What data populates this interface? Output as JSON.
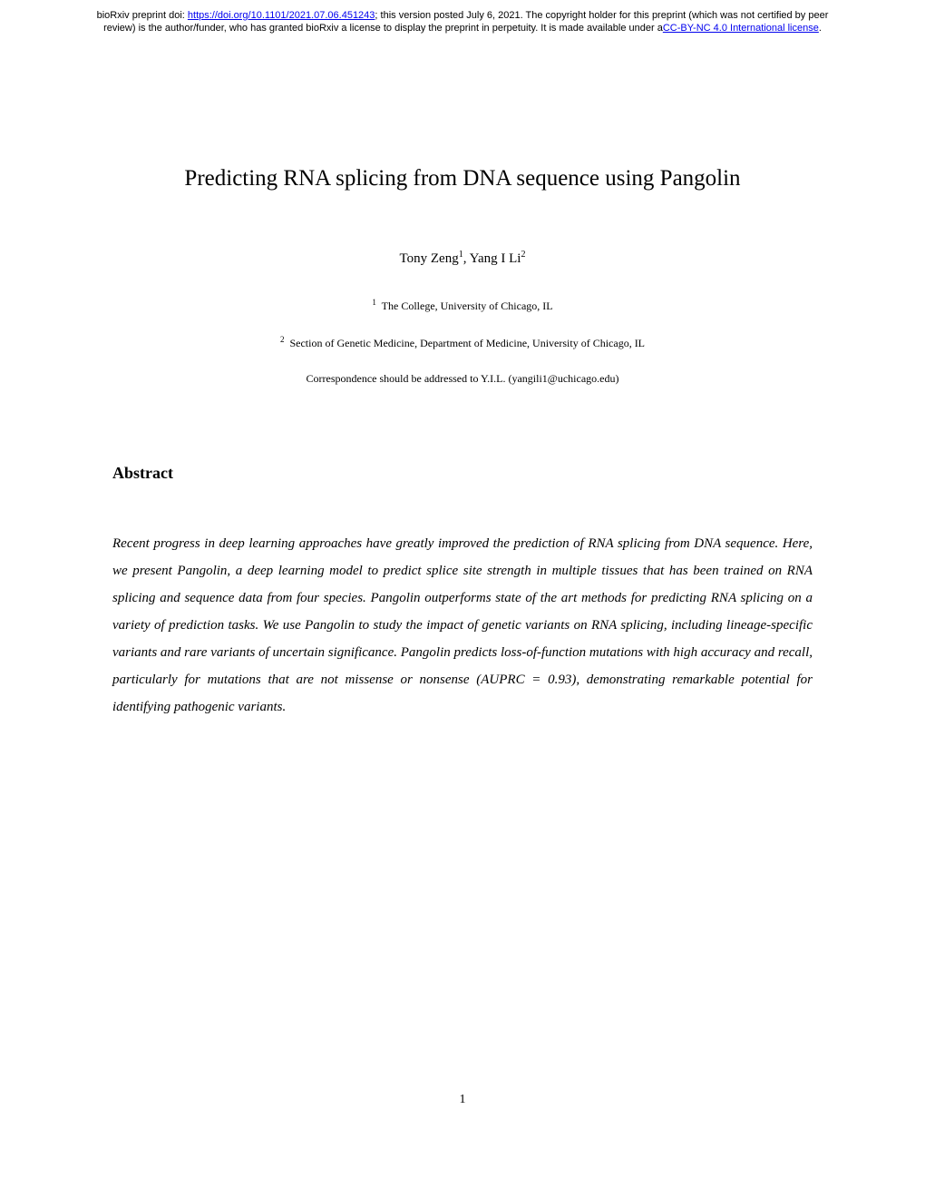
{
  "header": {
    "prefix": "bioRxiv preprint doi: ",
    "doi_url": "https://doi.org/10.1101/2021.07.06.451243",
    "middle": "; this version posted July 6, 2021. The copyright holder for this preprint (which was not certified by peer review) is the author/funder, who has granted bioRxiv a license to display the preprint in perpetuity. It is made available under a",
    "license_text": "CC-BY-NC 4.0 International license",
    "suffix": "."
  },
  "title": "Predicting RNA splicing from DNA sequence using Pangolin",
  "authors": {
    "a1_name": "Tony Zeng",
    "a1_sup": "1",
    "sep": ", ",
    "a2_name": "Yang I Li",
    "a2_sup": "2"
  },
  "affiliations": {
    "aff1_sup": "1",
    "aff1_text": " The College, University of Chicago, IL",
    "aff2_sup": "2",
    "aff2_text": " Section of Genetic Medicine, Department of Medicine, University of Chicago, IL"
  },
  "correspondence": "Correspondence should be addressed to Y.I.L. (yangili1@uchicago.edu)",
  "abstract": {
    "heading": "Abstract",
    "body": "Recent progress in deep learning approaches have greatly improved the prediction of RNA splicing from DNA sequence. Here, we present Pangolin, a deep learning model to predict splice site strength in multiple tissues that has been trained on RNA splicing and sequence data from four species. Pangolin outperforms state of the art methods for predicting RNA splicing on a variety of prediction tasks. We use Pangolin to study the impact of genetic variants on RNA splicing, including lineage-specific variants and rare variants of uncertain significance. Pangolin predicts loss-of-function mutations with high accuracy and recall, particularly for mutations that are not missense or nonsense (AUPRC = 0.93), demonstrating remarkable potential for identifying pathogenic variants."
  },
  "page_number": "1"
}
